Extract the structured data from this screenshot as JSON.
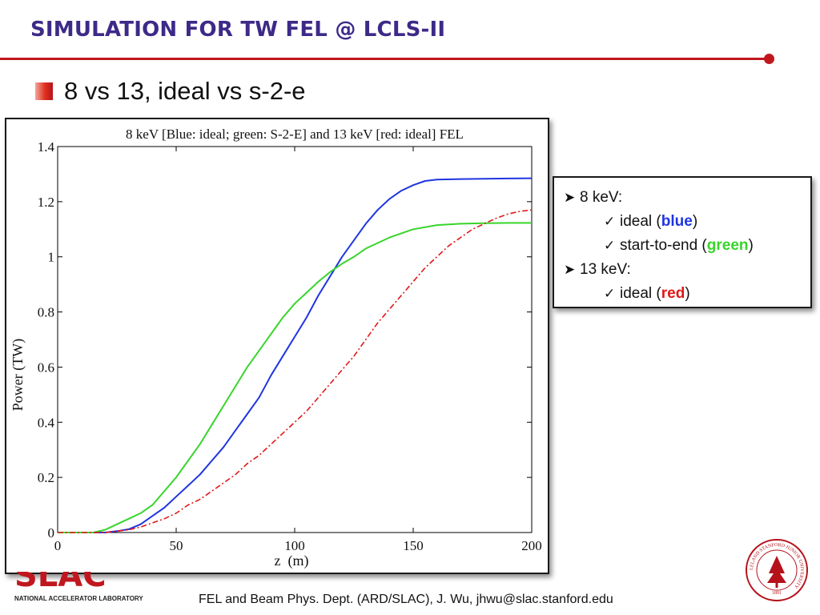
{
  "slide": {
    "title": "SIMULATION FOR TW FEL @ LCLS-II",
    "bullet": "8 vs 13, ideal vs s-2-e",
    "footer": "FEL and Beam Phys. Dept. (ARD/SLAC), J. Wu, jhwu@slac.stanford.edu",
    "logo_text": "SLAC",
    "logo_subtext": "NATIONAL ACCELERATOR LABORATORY",
    "seal_text": "LELAND STANFORD JUNIOR UNIVERSITY",
    "seal_year": "1891",
    "accent_color": "#c0171f",
    "title_color": "#3d2a88"
  },
  "legend_box": {
    "items": [
      {
        "level": 1,
        "marker": "arrow",
        "text": "8 keV:"
      },
      {
        "level": 2,
        "marker": "check",
        "prefix": "ideal (",
        "key": "blue",
        "key_color": "#1f35e0",
        "suffix": ")"
      },
      {
        "level": 2,
        "marker": "check",
        "prefix": "start-to-end (",
        "key": "green",
        "key_color": "#37d52a",
        "suffix": ")"
      },
      {
        "level": 1,
        "marker": "arrow",
        "text": "13 keV:"
      },
      {
        "level": 2,
        "marker": "check",
        "prefix": "ideal (",
        "key": "red",
        "key_color": "#e01818",
        "suffix": ")"
      }
    ]
  },
  "chart_data": {
    "type": "line",
    "title": "8 keV [Blue: ideal; green: S-2-E] and 13 keV [red: ideal] FEL",
    "xlabel": "z  (m)",
    "ylabel": "Power (TW)",
    "xlim": [
      0,
      200
    ],
    "ylim": [
      0,
      1.4
    ],
    "xticks": [
      0,
      50,
      100,
      150,
      200
    ],
    "xtick_labels": [
      "0",
      "50",
      "100",
      "150",
      "200"
    ],
    "yticks": [
      0,
      0.2,
      0.4,
      0.6,
      0.8,
      1.0,
      1.2,
      1.4
    ],
    "ytick_labels": [
      "0",
      "0.2",
      "0.4",
      "0.6",
      "0.8",
      "1",
      "1.2",
      "1.4"
    ],
    "grid": false,
    "series": [
      {
        "color": "#1f35e0",
        "style": "solid",
        "x": [
          0,
          20,
          25,
          30,
          35,
          40,
          45,
          50,
          55,
          60,
          65,
          70,
          75,
          80,
          85,
          90,
          95,
          100,
          105,
          110,
          115,
          120,
          125,
          130,
          135,
          140,
          145,
          150,
          155,
          160,
          170,
          180,
          190,
          200
        ],
        "y": [
          0,
          0,
          0.005,
          0.012,
          0.03,
          0.06,
          0.09,
          0.13,
          0.17,
          0.21,
          0.26,
          0.31,
          0.37,
          0.43,
          0.49,
          0.57,
          0.64,
          0.71,
          0.78,
          0.86,
          0.93,
          1.0,
          1.06,
          1.12,
          1.17,
          1.21,
          1.24,
          1.26,
          1.275,
          1.28,
          1.282,
          1.283,
          1.284,
          1.285
        ]
      },
      {
        "color": "#37d52a",
        "style": "solid",
        "x": [
          0,
          15,
          20,
          25,
          30,
          35,
          40,
          45,
          50,
          55,
          60,
          65,
          70,
          75,
          80,
          85,
          90,
          95,
          100,
          105,
          110,
          115,
          120,
          125,
          130,
          140,
          150,
          160,
          170,
          180,
          190,
          200
        ],
        "y": [
          0,
          0,
          0.01,
          0.03,
          0.05,
          0.07,
          0.1,
          0.15,
          0.2,
          0.26,
          0.32,
          0.39,
          0.46,
          0.53,
          0.6,
          0.66,
          0.72,
          0.78,
          0.83,
          0.87,
          0.91,
          0.945,
          0.975,
          1.0,
          1.03,
          1.07,
          1.1,
          1.115,
          1.12,
          1.122,
          1.123,
          1.123
        ]
      },
      {
        "color": "#e01818",
        "style": "dashdot",
        "x": [
          0,
          20,
          25,
          30,
          35,
          40,
          45,
          50,
          55,
          60,
          65,
          70,
          75,
          80,
          85,
          90,
          95,
          100,
          105,
          110,
          115,
          120,
          125,
          130,
          135,
          140,
          145,
          150,
          155,
          160,
          165,
          170,
          175,
          180,
          185,
          190,
          195,
          200
        ],
        "y": [
          0,
          0,
          0.005,
          0.01,
          0.02,
          0.035,
          0.05,
          0.07,
          0.1,
          0.12,
          0.15,
          0.18,
          0.21,
          0.25,
          0.28,
          0.32,
          0.36,
          0.4,
          0.44,
          0.49,
          0.54,
          0.59,
          0.64,
          0.7,
          0.76,
          0.81,
          0.86,
          0.91,
          0.96,
          1.0,
          1.04,
          1.07,
          1.1,
          1.12,
          1.14,
          1.155,
          1.165,
          1.17
        ]
      }
    ]
  }
}
